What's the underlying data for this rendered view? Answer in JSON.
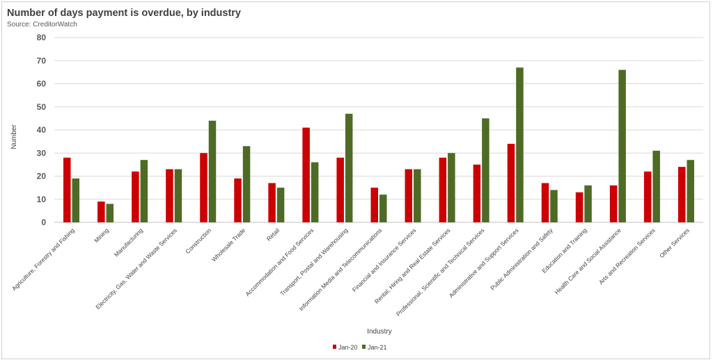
{
  "chart_data": {
    "type": "bar",
    "title": "Number of days payment is overdue, by industry",
    "subtitle": "Source: CreditorWatch",
    "xlabel": "Industry",
    "ylabel": "Number",
    "ylim": [
      0,
      80
    ],
    "yticks": [
      0,
      10,
      20,
      30,
      40,
      50,
      60,
      70,
      80
    ],
    "grid": true,
    "legend_position": "bottom-center",
    "categories": [
      "Agriculture, Forestry and Fishing",
      "Mining",
      "Manufacturing",
      "Electricity, Gas, Water and Waste Services",
      "Construction",
      "Wholesale Trade",
      "Retail",
      "Accommodation and Food Services",
      "Transport, Postal and Warehousing",
      "Information Media and Telecommunications",
      "Financial and Insurance Services",
      "Rental, Hiring and Real Estate Services",
      "Professional, Scientific and Technical Services",
      "Administrative and Support Services",
      "Public Administration and Safety",
      "Education and Training",
      "Health Care and Social Assistance",
      "Arts and Recreation Services",
      "Other Services"
    ],
    "series": [
      {
        "name": "Jan-20",
        "color": "#cc0000",
        "values": [
          28,
          9,
          22,
          23,
          30,
          19,
          17,
          41,
          28,
          15,
          23,
          28,
          25,
          34,
          17,
          13,
          16,
          22,
          24
        ]
      },
      {
        "name": "Jan-21",
        "color": "#4e6b26",
        "values": [
          19,
          8,
          27,
          23,
          44,
          33,
          15,
          26,
          47,
          12,
          23,
          30,
          45,
          67,
          14,
          16,
          66,
          31,
          27
        ]
      }
    ]
  }
}
